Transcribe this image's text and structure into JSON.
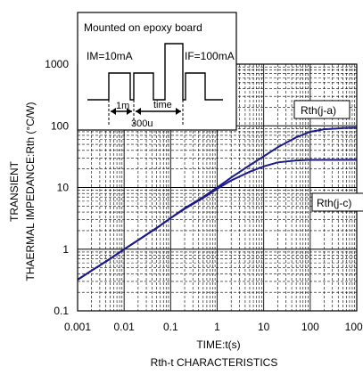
{
  "chart_data": {
    "type": "line",
    "title": "",
    "xlabel": "TIME:t(s)",
    "ylabel_line1": "TRANSIENT",
    "ylabel_line2": "THAERMAL IMPEDANCE:Rth (°C/W)",
    "caption": "Rth-t CHARACTERISTICS",
    "xscale": "log",
    "yscale": "log",
    "xlim": [
      0.001,
      1000
    ],
    "ylim": [
      0.1,
      1000
    ],
    "x_ticks": [
      "0.001",
      "0.01",
      "0.1",
      "1",
      "10",
      "100",
      "1000"
    ],
    "y_ticks": [
      "0.1",
      "1",
      "10",
      "100",
      "1000"
    ],
    "grid": true,
    "series": [
      {
        "name": "Rth(j-a)",
        "color": "#1a1a8c",
        "x": [
          0.001,
          0.002,
          0.005,
          0.01,
          0.02,
          0.05,
          0.1,
          0.2,
          0.5,
          1,
          2,
          5,
          10,
          20,
          50,
          100,
          200,
          500,
          1000
        ],
        "y": [
          0.32,
          0.45,
          0.7,
          1.0,
          1.4,
          2.2,
          3.2,
          4.6,
          7.0,
          10.0,
          14.5,
          23,
          32,
          45,
          65,
          80,
          88,
          92,
          93
        ]
      },
      {
        "name": "Rth(j-c)",
        "color": "#1a1a8c",
        "x": [
          0.001,
          0.002,
          0.005,
          0.01,
          0.02,
          0.05,
          0.1,
          0.2,
          0.5,
          1,
          2,
          5,
          10,
          20,
          50,
          100,
          200,
          500,
          1000
        ],
        "y": [
          0.32,
          0.45,
          0.7,
          1.0,
          1.4,
          2.2,
          3.2,
          4.5,
          6.8,
          9.5,
          13,
          18,
          22,
          25.5,
          27.5,
          28,
          28,
          28,
          28
        ]
      }
    ]
  },
  "inset": {
    "title": "Mounted on epoxy board",
    "im_label": "IM=10mA",
    "if_label": "IF=100mA",
    "t1_label": "1m",
    "time_label": "time",
    "t2_label": "300u"
  },
  "colors": {
    "curve": "#1a1a8c",
    "axis": "#000000",
    "grid": "#000000"
  }
}
